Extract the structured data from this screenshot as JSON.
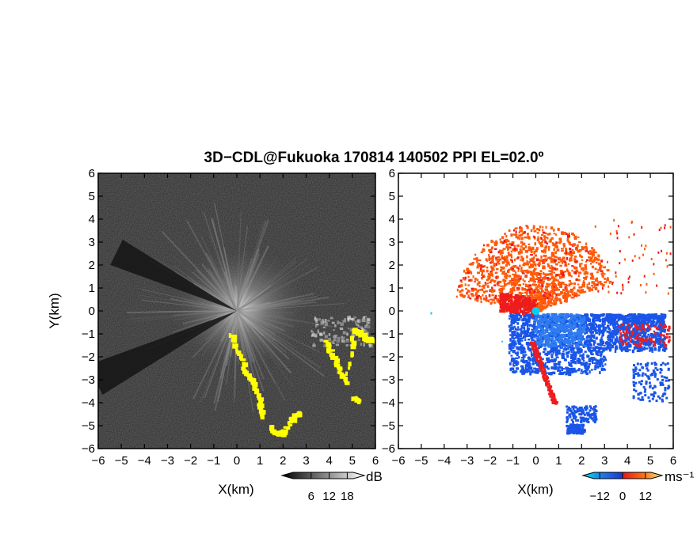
{
  "title": "3D−CDL@Fukuoka 170814 140502 PPI EL=02.0º",
  "chart_data": [
    {
      "type": "heatmap",
      "name": "reflectivity",
      "xlabel": "X(km)",
      "ylabel": "Y(km)",
      "xlim": [
        -6,
        6
      ],
      "ylim": [
        -6,
        6
      ],
      "xticks": [
        "−6",
        "−5",
        "−4",
        "−3",
        "−2",
        "−1",
        "0",
        "1",
        "2",
        "3",
        "4",
        "5",
        "6"
      ],
      "yticks": [
        "−6",
        "−5",
        "−4",
        "−3",
        "−2",
        "−1",
        "0",
        "1",
        "2",
        "3",
        "4",
        "5",
        "6"
      ],
      "colorbar": {
        "unit": "dB",
        "ticks": [
          "6",
          "12",
          "18"
        ],
        "values": [
          6,
          12,
          18
        ],
        "range": [
          0,
          20
        ]
      },
      "highlight_color": "#ffff00",
      "yellow_echoes": [
        {
          "x": [
            -0.3,
            0.0,
            0.3,
            0.6,
            0.9,
            1.0
          ],
          "y": [
            -0.9,
            -1.8,
            -2.6,
            -3.0,
            -3.8,
            -4.5
          ]
        },
        {
          "x": [
            1.4,
            1.7,
            2.0,
            2.4,
            2.7
          ],
          "y": [
            -5.0,
            -5.3,
            -5.2,
            -4.5,
            -4.4
          ]
        },
        {
          "x": [
            3.8,
            4.1,
            4.4,
            4.7,
            5.0,
            5.3,
            5.6,
            5.9
          ],
          "y": [
            -1.3,
            -1.9,
            -2.6,
            -3.1,
            -0.8,
            -0.9,
            -1.2,
            -1.2
          ]
        },
        {
          "x": [
            5.0,
            5.2
          ],
          "y": [
            -3.7,
            -3.9
          ]
        }
      ]
    },
    {
      "type": "heatmap",
      "name": "doppler-velocity",
      "xlabel": "X(km)",
      "xlim": [
        -6,
        6
      ],
      "ylim": [
        -6,
        6
      ],
      "xticks": [
        "−6",
        "−5",
        "−4",
        "−3",
        "−2",
        "−1",
        "0",
        "1",
        "2",
        "3",
        "4",
        "5",
        "6"
      ],
      "yticks": [
        "−6",
        "−5",
        "−4",
        "−3",
        "−2",
        "−1",
        "0",
        "1",
        "2",
        "3",
        "4",
        "5",
        "6"
      ],
      "colorbar": {
        "unit": "ms⁻¹",
        "ticks": [
          "−12",
          "0",
          "12"
        ],
        "values": [
          -12,
          0,
          12
        ],
        "range": [
          -15,
          15
        ]
      },
      "colors": {
        "receding": "#ff5a0a",
        "strong_receding": "#ee1c1c",
        "approaching": "#1a55e8",
        "strong_approaching": "#00d2ee"
      },
      "radar_position": [
        0,
        0
      ]
    }
  ]
}
